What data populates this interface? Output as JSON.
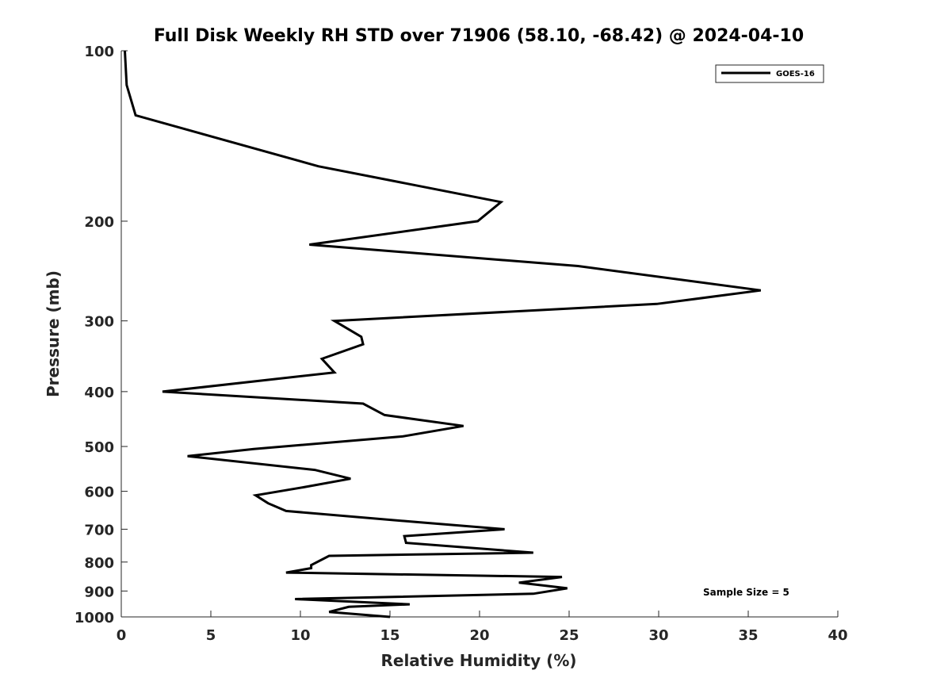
{
  "chart_data": {
    "type": "line",
    "title": "Full Disk Weekly RH STD over 71906 (58.10, -68.42) @ 2024-04-10",
    "xlabel": "Relative Humidity (%)",
    "ylabel": "Pressure (mb)",
    "xlim": [
      0,
      40
    ],
    "ylim": [
      100,
      1000
    ],
    "yscale": "log",
    "y_reversed": true,
    "xticks": [
      0,
      5,
      10,
      15,
      20,
      25,
      30,
      35,
      40
    ],
    "xtick_labels": [
      "0",
      "5",
      "10",
      "15",
      "20",
      "25",
      "30",
      "35",
      "40"
    ],
    "yticks": [
      100,
      200,
      300,
      400,
      500,
      600,
      700,
      800,
      900,
      1000
    ],
    "ytick_labels": [
      "100",
      "200",
      "300",
      "400",
      "500",
      "600",
      "700",
      "800",
      "900",
      "1000"
    ],
    "grid": false,
    "legend_position": "top-right",
    "annotation": "Sample Size = 5",
    "series": [
      {
        "name": "GOES-16",
        "color": "#000000",
        "x": [
          0.2,
          0.3,
          0.8,
          11.0,
          21.2,
          19.9,
          10.5,
          25.5,
          35.7,
          29.9,
          11.9,
          13.4,
          13.5,
          11.2,
          11.9,
          2.3,
          13.5,
          14.7,
          19.1,
          15.7,
          7.4,
          3.7,
          10.8,
          12.8,
          10.2,
          7.5,
          8.2,
          9.2,
          16.5,
          21.4,
          15.8,
          15.9,
          23.0,
          11.6,
          10.6,
          10.6,
          9.2,
          24.6,
          22.2,
          24.9,
          23.0,
          9.7,
          16.1,
          12.7,
          11.6,
          15.0
        ],
        "y": [
          100,
          115,
          130,
          160,
          185,
          200,
          220,
          240,
          265,
          280,
          300,
          320,
          330,
          350,
          370,
          400,
          420,
          440,
          460,
          480,
          505,
          520,
          550,
          570,
          590,
          610,
          630,
          650,
          680,
          700,
          720,
          740,
          770,
          780,
          810,
          820,
          835,
          850,
          870,
          890,
          910,
          930,
          950,
          960,
          980,
          1000
        ]
      }
    ]
  }
}
